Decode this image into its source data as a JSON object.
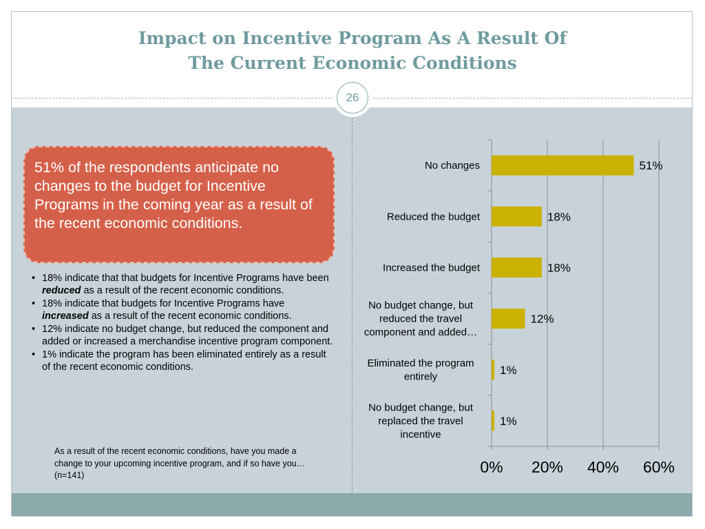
{
  "slide": {
    "title_line1": "Impact on Incentive Program As A Result Of",
    "title_line2": "The Current Economic Conditions",
    "page_number": "26"
  },
  "callout": {
    "text": "51% of the respondents anticipate no changes to the budget for Incentive Programs in the coming year as a result of the recent economic conditions."
  },
  "bullets": [
    {
      "before": "18% indicate that that budgets for Incentive Programs have been ",
      "emph": "reduced",
      "after": " as a result of the recent economic conditions."
    },
    {
      "before": "18% indicate that budgets for Incentive Programs have ",
      "emph": "increased",
      "after": " as a result of the recent economic conditions."
    },
    {
      "before": "12% indicate no budget change, but reduced the component and added or increased a merchandise incentive program component.",
      "emph": "",
      "after": ""
    },
    {
      "before": "1% indicate the program has been eliminated entirely as a result of the recent economic conditions.",
      "emph": "",
      "after": ""
    }
  ],
  "note": "As a result of the recent economic conditions, have you made a change to your upcoming incentive program, and if so have you… (n=141)",
  "colors": {
    "bar": "#ccb200",
    "title": "#6f9b9e",
    "callout": "#d5604a",
    "background": "#c8d3d9",
    "footer": "#8aaaac"
  },
  "chart_data": {
    "type": "bar",
    "orientation": "horizontal",
    "categories": [
      [
        "No changes"
      ],
      [
        "Reduced the budget"
      ],
      [
        "Increased the budget"
      ],
      [
        "No budget change, but",
        "reduced the travel",
        "component and added…"
      ],
      [
        "Eliminated the program",
        "entirely"
      ],
      [
        "No budget change, but",
        "replaced the travel",
        "incentive"
      ]
    ],
    "values": [
      51,
      18,
      18,
      12,
      1,
      1
    ],
    "data_labels": [
      "51%",
      "18%",
      "18%",
      "12%",
      "1%",
      "1%"
    ],
    "xlim": [
      0,
      60
    ],
    "xticks": [
      0,
      20,
      40,
      60
    ],
    "xtick_labels": [
      "0%",
      "20%",
      "40%",
      "60%"
    ],
    "grid": "vertical",
    "legend": "none"
  }
}
